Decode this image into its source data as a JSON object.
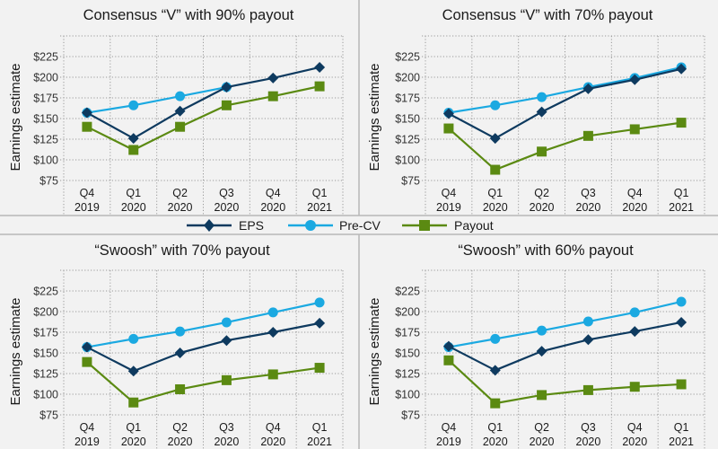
{
  "colors": {
    "background": "#f2f2f2",
    "EPS": "#0e3a5f",
    "Pre-CV": "#1ba9e1",
    "Payout": "#5b8a12"
  },
  "legend": {
    "items": [
      {
        "name": "EPS",
        "marker": "diamond"
      },
      {
        "name": "Pre-CV",
        "marker": "circle"
      },
      {
        "name": "Payout",
        "marker": "square"
      }
    ]
  },
  "chart_data": [
    {
      "type": "line",
      "title": "Consensus “V” with 90% payout",
      "xlabel": "",
      "ylabel": "Earnings estimate",
      "categories": [
        "Q4|2019",
        "Q1|2020",
        "Q2|2020",
        "Q3|2020",
        "Q4|2020",
        "Q1|2021"
      ],
      "yticks": [
        "$75",
        "$100",
        "$125",
        "$150",
        "$175",
        "$200",
        "$225"
      ],
      "ylim": [
        75,
        250
      ],
      "grid": true,
      "series": [
        {
          "name": "EPS",
          "values": [
            157,
            126,
            159,
            188,
            199,
            212
          ]
        },
        {
          "name": "Pre-CV",
          "values": [
            157,
            166,
            177,
            188,
            null,
            null
          ]
        },
        {
          "name": "Payout",
          "values": [
            140,
            112,
            140,
            166,
            177,
            189
          ]
        }
      ]
    },
    {
      "type": "line",
      "title": "Consensus “V” with 70% payout",
      "xlabel": "",
      "ylabel": "Earnings estimate",
      "categories": [
        "Q4|2019",
        "Q1|2020",
        "Q2|2020",
        "Q3|2020",
        "Q4|2020",
        "Q1|2021"
      ],
      "yticks": [
        "$75",
        "$100",
        "$125",
        "$150",
        "$175",
        "$200",
        "$225"
      ],
      "ylim": [
        75,
        250
      ],
      "grid": true,
      "series": [
        {
          "name": "EPS",
          "values": [
            156,
            126,
            158,
            186,
            197,
            210
          ]
        },
        {
          "name": "Pre-CV",
          "values": [
            157,
            166,
            176,
            188,
            199,
            212
          ]
        },
        {
          "name": "Payout",
          "values": [
            138,
            88,
            110,
            129,
            137,
            145
          ]
        }
      ]
    },
    {
      "type": "line",
      "title": "“Swoosh” with 70% payout",
      "xlabel": "",
      "ylabel": "Earnings estimate",
      "categories": [
        "Q4|2019",
        "Q1|2020",
        "Q2|2020",
        "Q3|2020",
        "Q4|2020",
        "Q1|2021"
      ],
      "yticks": [
        "$75",
        "$100",
        "$125",
        "$150",
        "$175",
        "$200",
        "$225"
      ],
      "ylim": [
        75,
        250
      ],
      "grid": true,
      "series": [
        {
          "name": "EPS",
          "values": [
            157,
            128,
            150,
            165,
            175,
            186
          ]
        },
        {
          "name": "Pre-CV",
          "values": [
            157,
            167,
            176,
            187,
            199,
            211
          ]
        },
        {
          "name": "Payout",
          "values": [
            139,
            90,
            106,
            117,
            124,
            132
          ]
        }
      ]
    },
    {
      "type": "line",
      "title": "“Swoosh” with 60% payout",
      "xlabel": "",
      "ylabel": "Earnings estimate",
      "categories": [
        "Q4|2019",
        "Q1|2020",
        "Q2|2020",
        "Q3|2020",
        "Q4|2020",
        "Q1|2021"
      ],
      "yticks": [
        "$75",
        "$100",
        "$125",
        "$150",
        "$175",
        "$200",
        "$225"
      ],
      "ylim": [
        75,
        250
      ],
      "grid": true,
      "series": [
        {
          "name": "EPS",
          "values": [
            158,
            129,
            152,
            166,
            176,
            187
          ]
        },
        {
          "name": "Pre-CV",
          "values": [
            157,
            167,
            177,
            188,
            199,
            212
          ]
        },
        {
          "name": "Payout",
          "values": [
            141,
            89,
            99,
            105,
            109,
            112
          ]
        }
      ]
    }
  ]
}
